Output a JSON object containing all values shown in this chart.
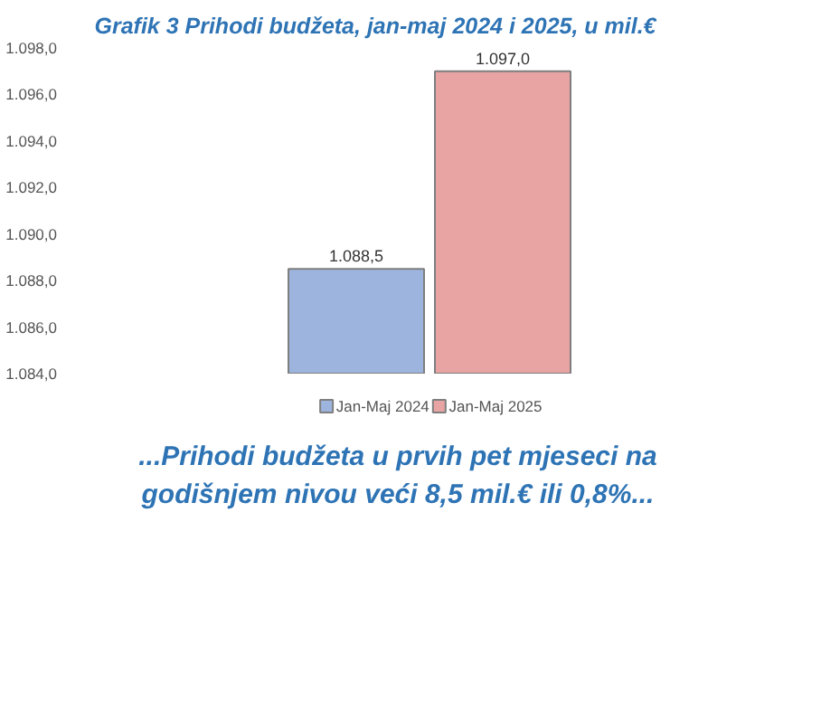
{
  "chart_data": {
    "type": "bar",
    "title": "Grafik 3 Prihodi budžeta, jan-maj 2024 i 2025, u mil.€",
    "categories": [
      null
    ],
    "series": [
      {
        "name": "Jan-Maj 2024",
        "color": "#9db5de",
        "values": [
          1088.5
        ],
        "value_labels": [
          "1.088,5"
        ]
      },
      {
        "name": "Jan-Maj 2025",
        "color": "#e8a3a3",
        "values": [
          1097.0
        ],
        "value_labels": [
          "1.097,0"
        ]
      }
    ],
    "ylim": [
      1084,
      1098
    ],
    "yticks": [
      {
        "value": 1084,
        "label": "1.084,0"
      },
      {
        "value": 1086,
        "label": "1.086,0"
      },
      {
        "value": 1088,
        "label": "1.088,0"
      },
      {
        "value": 1090,
        "label": "1.090,0"
      },
      {
        "value": 1092,
        "label": "1.092,0"
      },
      {
        "value": 1094,
        "label": "1.094,0"
      },
      {
        "value": 1096,
        "label": "1.096,0"
      },
      {
        "value": 1098,
        "label": "1.098,0"
      }
    ],
    "grid": false,
    "legend": "bottom",
    "tick_labels": "y",
    "annotations": [
      "...Prihodi budžeta u prvih pet mjeseci na godišnjem nivou veći 8,5 mil.€ ili 0,8%..."
    ]
  }
}
